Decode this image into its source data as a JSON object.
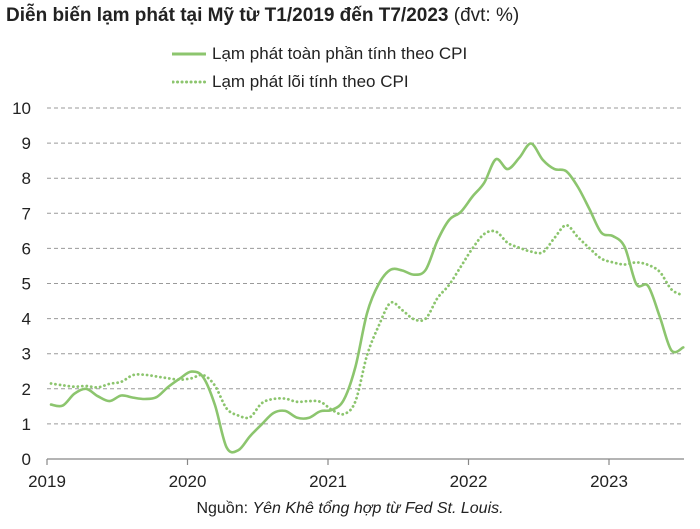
{
  "title": {
    "main": "Diễn biến lạm phát tại Mỹ từ T1/2019 đến T7/2023",
    "unit": "(đvt: %)"
  },
  "source": {
    "prefix": "Nguồn:",
    "text": "Yên Khê tổng hợp từ Fed St. Louis."
  },
  "colors": {
    "series": "#8cc56e",
    "gridline": "#9a9a9a",
    "axis": "#888888"
  },
  "chart_data": {
    "type": "line",
    "ylim": [
      0,
      10
    ],
    "y_ticks": [
      "0",
      "1",
      "2",
      "3",
      "4",
      "5",
      "6",
      "7",
      "8",
      "9",
      "10"
    ],
    "x_ticks": [
      "2019",
      "2020",
      "2021",
      "2022",
      "2023"
    ],
    "grid": "horizontal dashed",
    "legend_position": "top",
    "series": [
      {
        "name": "Lạm phát toàn phần tính theo CPI",
        "style": "solid",
        "values": [
          1.55,
          1.52,
          1.86,
          2.0,
          1.79,
          1.65,
          1.81,
          1.75,
          1.71,
          1.76,
          2.05,
          2.29,
          2.49,
          2.33,
          1.54,
          0.33,
          0.25,
          0.65,
          0.99,
          1.31,
          1.37,
          1.18,
          1.17,
          1.36,
          1.4,
          1.68,
          2.62,
          4.16,
          4.99,
          5.39,
          5.37,
          5.25,
          5.39,
          6.22,
          6.81,
          7.04,
          7.48,
          7.87,
          8.54,
          8.26,
          8.58,
          8.99,
          8.52,
          8.26,
          8.2,
          7.75,
          7.11,
          6.45,
          6.35,
          6.04,
          4.98,
          4.93,
          4.05,
          3.09,
          3.18
        ]
      },
      {
        "name": "Lạm phát lõi tính theo CPI",
        "style": "dotted",
        "values": [
          2.15,
          2.1,
          2.06,
          2.08,
          2.04,
          2.14,
          2.2,
          2.39,
          2.4,
          2.35,
          2.3,
          2.26,
          2.3,
          2.39,
          2.09,
          1.44,
          1.24,
          1.19,
          1.59,
          1.71,
          1.72,
          1.63,
          1.65,
          1.63,
          1.4,
          1.28,
          1.64,
          2.96,
          3.8,
          4.45,
          4.24,
          3.98,
          4.0,
          4.58,
          4.96,
          5.48,
          6.0,
          6.41,
          6.48,
          6.16,
          6.02,
          5.91,
          5.89,
          6.3,
          6.66,
          6.32,
          6.0,
          5.71,
          5.6,
          5.54,
          5.6,
          5.53,
          5.33,
          4.83,
          4.66
        ]
      }
    ]
  }
}
